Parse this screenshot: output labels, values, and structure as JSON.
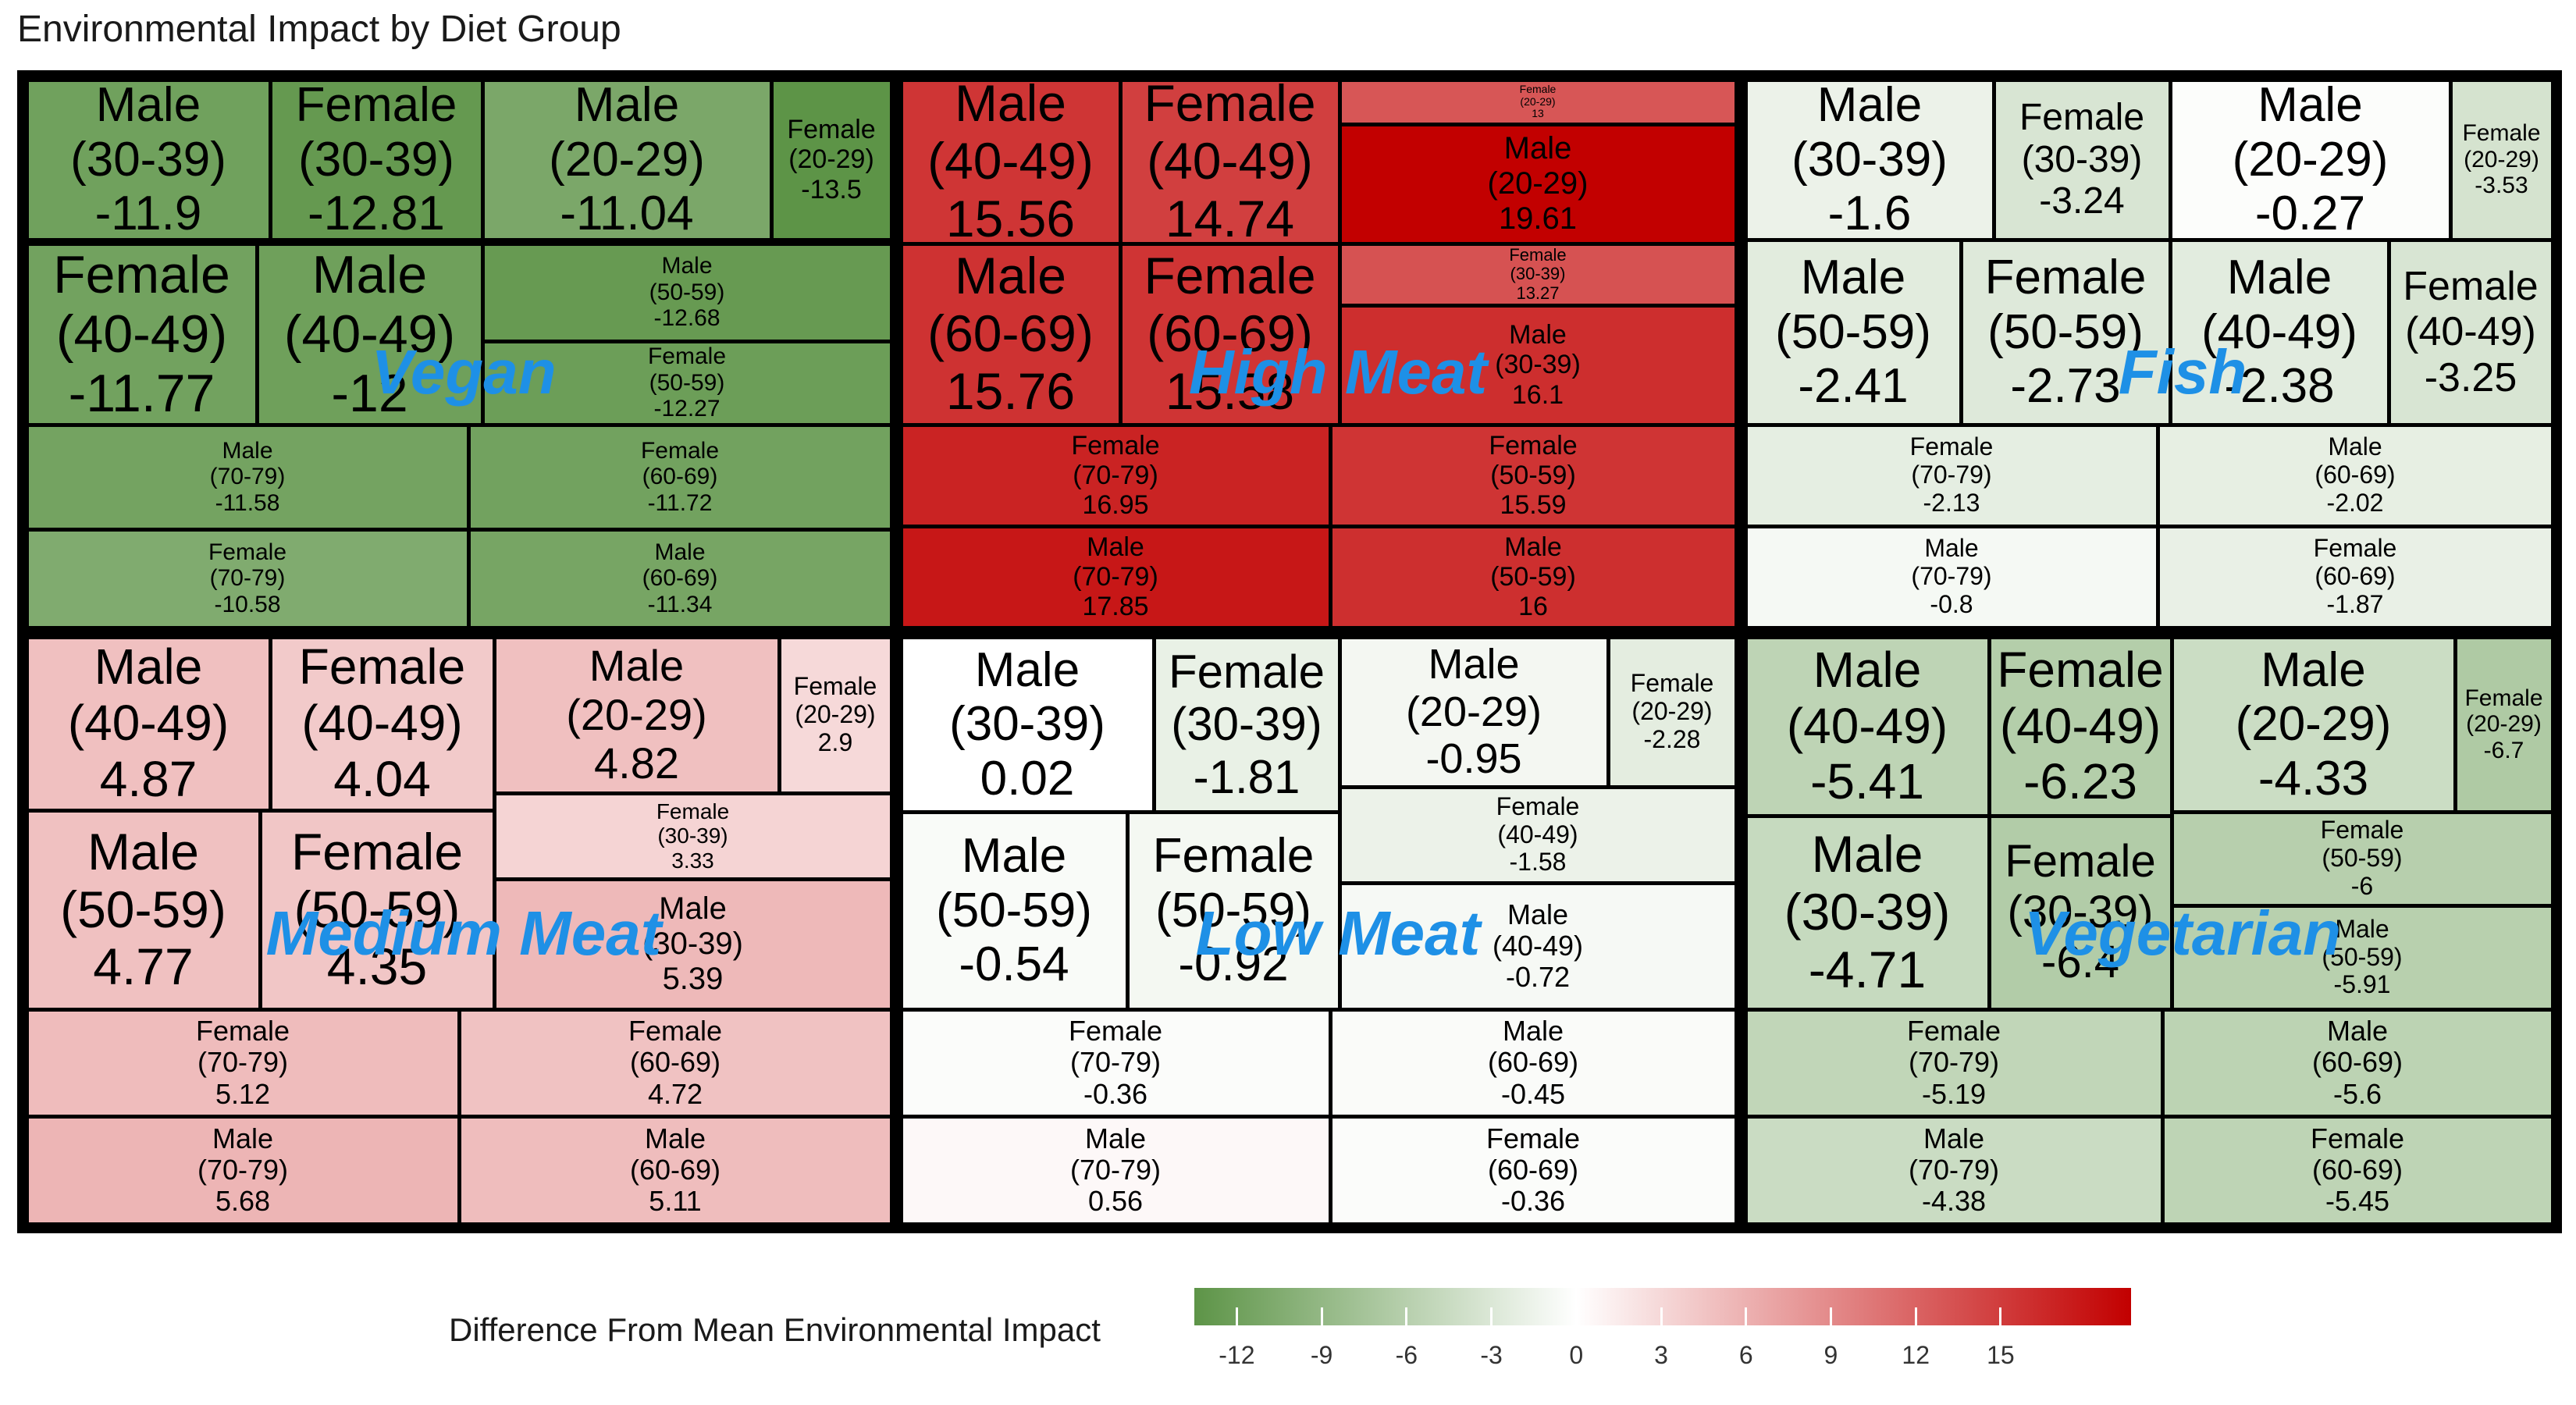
{
  "chart_data": {
    "type": "treemap",
    "title": "Environmental Impact by Diet Group",
    "legend": {
      "title": "Difference From Mean Environmental Impact",
      "range": [
        -13.5,
        19.61
      ],
      "ticks": [
        "-12",
        "-9",
        "-6",
        "-3",
        "0",
        "3",
        "6",
        "9",
        "12",
        "15"
      ],
      "colors": {
        "low": "#5d9447",
        "mid": "#ffffff",
        "high": "#c20000"
      }
    },
    "groups": [
      {
        "name": "Vegan",
        "cells": [
          {
            "sex": "Male",
            "age": "(30-39)",
            "value": -11.9
          },
          {
            "sex": "Female",
            "age": "(30-39)",
            "value": -12.81
          },
          {
            "sex": "Male",
            "age": "(20-29)",
            "value": -11.04
          },
          {
            "sex": "Female",
            "age": "(20-29)",
            "value": -13.5
          },
          {
            "sex": "Female",
            "age": "(40-49)",
            "value": -11.77
          },
          {
            "sex": "Male",
            "age": "(40-49)",
            "value": -12
          },
          {
            "sex": "Male",
            "age": "(50-59)",
            "value": -12.68
          },
          {
            "sex": "Female",
            "age": "(50-59)",
            "value": -12.27
          },
          {
            "sex": "Male",
            "age": "(70-79)",
            "value": -11.58
          },
          {
            "sex": "Female",
            "age": "(70-79)",
            "value": -10.58
          },
          {
            "sex": "Female",
            "age": "(60-69)",
            "value": -11.72
          },
          {
            "sex": "Male",
            "age": "(60-69)",
            "value": -11.34
          }
        ]
      },
      {
        "name": "High Meat",
        "cells": [
          {
            "sex": "Male",
            "age": "(40-49)",
            "value": 15.56
          },
          {
            "sex": "Female",
            "age": "(40-49)",
            "value": 14.74
          },
          {
            "sex": "Female",
            "age": "(20-29)",
            "value": 13
          },
          {
            "sex": "Male",
            "age": "(20-29)",
            "value": 19.61
          },
          {
            "sex": "Male",
            "age": "(60-69)",
            "value": 15.76
          },
          {
            "sex": "Female",
            "age": "(60-69)",
            "value": 15.58
          },
          {
            "sex": "Female",
            "age": "(30-39)",
            "value": 13.27
          },
          {
            "sex": "Male",
            "age": "(30-39)",
            "value": 16.1
          },
          {
            "sex": "Female",
            "age": "(70-79)",
            "value": 16.95
          },
          {
            "sex": "Male",
            "age": "(70-79)",
            "value": 17.85
          },
          {
            "sex": "Female",
            "age": "(50-59)",
            "value": 15.59
          },
          {
            "sex": "Male",
            "age": "(50-59)",
            "value": 16
          }
        ]
      },
      {
        "name": "Fish",
        "cells": [
          {
            "sex": "Male",
            "age": "(30-39)",
            "value": -1.6
          },
          {
            "sex": "Female",
            "age": "(30-39)",
            "value": -3.24
          },
          {
            "sex": "Male",
            "age": "(20-29)",
            "value": -0.27
          },
          {
            "sex": "Female",
            "age": "(20-29)",
            "value": -3.53
          },
          {
            "sex": "Male",
            "age": "(50-59)",
            "value": -2.41
          },
          {
            "sex": "Female",
            "age": "(50-59)",
            "value": -2.73
          },
          {
            "sex": "Male",
            "age": "(40-49)",
            "value": -2.38
          },
          {
            "sex": "Female",
            "age": "(40-49)",
            "value": -3.25
          },
          {
            "sex": "Female",
            "age": "(70-79)",
            "value": -2.13
          },
          {
            "sex": "Male",
            "age": "(70-79)",
            "value": -0.8
          },
          {
            "sex": "Male",
            "age": "(60-69)",
            "value": -2.02
          },
          {
            "sex": "Female",
            "age": "(60-69)",
            "value": -1.87
          }
        ]
      },
      {
        "name": "Medium Meat",
        "cells": [
          {
            "sex": "Male",
            "age": "(40-49)",
            "value": 4.87
          },
          {
            "sex": "Female",
            "age": "(40-49)",
            "value": 4.04
          },
          {
            "sex": "Male",
            "age": "(20-29)",
            "value": 4.82
          },
          {
            "sex": "Female",
            "age": "(20-29)",
            "value": 2.9
          },
          {
            "sex": "Male",
            "age": "(50-59)",
            "value": 4.77
          },
          {
            "sex": "Female",
            "age": "(50-59)",
            "value": 4.35
          },
          {
            "sex": "Female",
            "age": "(30-39)",
            "value": 3.33
          },
          {
            "sex": "Male",
            "age": "(30-39)",
            "value": 5.39
          },
          {
            "sex": "Female",
            "age": "(70-79)",
            "value": 5.12
          },
          {
            "sex": "Male",
            "age": "(70-79)",
            "value": 5.68
          },
          {
            "sex": "Female",
            "age": "(60-69)",
            "value": 4.72
          },
          {
            "sex": "Male",
            "age": "(60-69)",
            "value": 5.11
          }
        ]
      },
      {
        "name": "Low Meat",
        "cells": [
          {
            "sex": "Male",
            "age": "(30-39)",
            "value": 0.02
          },
          {
            "sex": "Female",
            "age": "(30-39)",
            "value": -1.81
          },
          {
            "sex": "Male",
            "age": "(20-29)",
            "value": -0.95
          },
          {
            "sex": "Female",
            "age": "(20-29)",
            "value": -2.28
          },
          {
            "sex": "Male",
            "age": "(50-59)",
            "value": -0.54
          },
          {
            "sex": "Female",
            "age": "(50-59)",
            "value": -0.92
          },
          {
            "sex": "Female",
            "age": "(40-49)",
            "value": -1.58
          },
          {
            "sex": "Male",
            "age": "(40-49)",
            "value": -0.72
          },
          {
            "sex": "Female",
            "age": "(70-79)",
            "value": -0.36
          },
          {
            "sex": "Male",
            "age": "(70-79)",
            "value": 0.56
          },
          {
            "sex": "Male",
            "age": "(60-69)",
            "value": -0.45
          },
          {
            "sex": "Female",
            "age": "(60-69)",
            "value": -0.36
          }
        ]
      },
      {
        "name": "Vegetarian",
        "cells": [
          {
            "sex": "Male",
            "age": "(40-49)",
            "value": -5.41
          },
          {
            "sex": "Female",
            "age": "(40-49)",
            "value": -6.23
          },
          {
            "sex": "Male",
            "age": "(20-29)",
            "value": -4.33
          },
          {
            "sex": "Female",
            "age": "(20-29)",
            "value": -6.7
          },
          {
            "sex": "Male",
            "age": "(30-39)",
            "value": -4.71
          },
          {
            "sex": "Female",
            "age": "(30-39)",
            "value": -6.4
          },
          {
            "sex": "Female",
            "age": "(50-59)",
            "value": -6
          },
          {
            "sex": "Male",
            "age": "(50-59)",
            "value": -5.91
          },
          {
            "sex": "Female",
            "age": "(70-79)",
            "value": -5.19
          },
          {
            "sex": "Male",
            "age": "(70-79)",
            "value": -4.38
          },
          {
            "sex": "Male",
            "age": "(60-69)",
            "value": -5.6
          },
          {
            "sex": "Female",
            "age": "(60-69)",
            "value": -5.45
          }
        ]
      }
    ]
  }
}
